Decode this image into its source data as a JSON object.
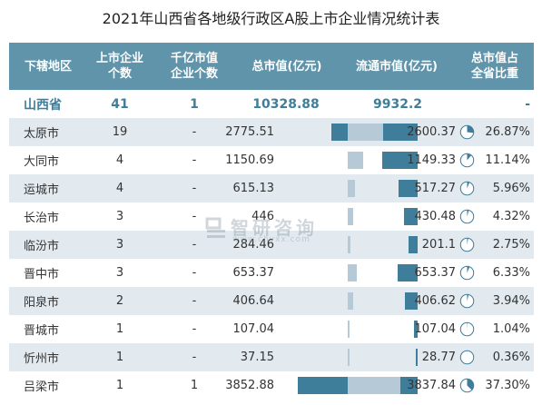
{
  "title": "2021年山西省各地级行政区A股上市企业情况统计表",
  "headers": {
    "region": "下辖地区",
    "count_1": "上市企业",
    "count_2": "个数",
    "hund_1": "千亿市值",
    "hund_2": "企业个数",
    "total": "总市值(亿元)",
    "circ": "流通市值(亿元)",
    "share_1": "总市值占",
    "share_2": "全省比重"
  },
  "province": {
    "name": "山西省",
    "count": "41",
    "hundred_billion": "1",
    "total": "10328.88",
    "circ": "9932.2",
    "share": "-"
  },
  "chart_data": {
    "type": "table",
    "title": "2021年山西省各地级行政区A股上市企业情况统计表",
    "columns": [
      "下辖地区",
      "上市企业个数",
      "千亿市值企业个数",
      "总市值(亿元)",
      "流通市值(亿元)",
      "总市值占全省比重"
    ],
    "rows": [
      {
        "name": "太原市",
        "count": "19",
        "hundred_billion": "-",
        "total": "2775.51",
        "circ": "2600.37",
        "share": "26.87%",
        "share_value": 26.87,
        "total_value": 2775.51,
        "circ_value": 2600.37
      },
      {
        "name": "大同市",
        "count": "4",
        "hundred_billion": "-",
        "total": "1150.69",
        "circ": "1149.33",
        "share": "11.14%",
        "share_value": 11.14,
        "total_value": 1150.69,
        "circ_value": 1149.33
      },
      {
        "name": "运城市",
        "count": "4",
        "hundred_billion": "-",
        "total": "615.13",
        "circ": "517.27",
        "share": "5.96%",
        "share_value": 5.96,
        "total_value": 615.13,
        "circ_value": 517.27
      },
      {
        "name": "长治市",
        "count": "3",
        "hundred_billion": "-",
        "total": "446",
        "circ": "430.48",
        "share": "4.32%",
        "share_value": 4.32,
        "total_value": 446,
        "circ_value": 430.48
      },
      {
        "name": "临汾市",
        "count": "3",
        "hundred_billion": "-",
        "total": "284.46",
        "circ": "201.1",
        "share": "2.75%",
        "share_value": 2.75,
        "total_value": 284.46,
        "circ_value": 201.1
      },
      {
        "name": "晋中市",
        "count": "3",
        "hundred_billion": "-",
        "total": "653.37",
        "circ": "653.37",
        "share": "6.33%",
        "share_value": 6.33,
        "total_value": 653.37,
        "circ_value": 653.37
      },
      {
        "name": "阳泉市",
        "count": "2",
        "hundred_billion": "-",
        "total": "406.64",
        "circ": "406.62",
        "share": "3.94%",
        "share_value": 3.94,
        "total_value": 406.64,
        "circ_value": 406.62
      },
      {
        "name": "晋城市",
        "count": "1",
        "hundred_billion": "-",
        "total": "107.04",
        "circ": "107.04",
        "share": "1.04%",
        "share_value": 1.04,
        "total_value": 107.04,
        "circ_value": 107.04
      },
      {
        "name": "忻州市",
        "count": "1",
        "hundred_billion": "-",
        "total": "37.15",
        "circ": "28.77",
        "share": "0.36%",
        "share_value": 0.36,
        "total_value": 37.15,
        "circ_value": 28.77
      },
      {
        "name": "吕梁市",
        "count": "1",
        "hundred_billion": "1",
        "total": "3852.88",
        "circ": "3837.84",
        "share": "37.30%",
        "share_value": 37.3,
        "total_value": 3852.88,
        "circ_value": 3837.84
      }
    ],
    "bar_max": 3852.88
  },
  "colors": {
    "header_bg": "#5f94aa",
    "total_bar": "#3f7e9b",
    "circ_bar": "#b5cad6",
    "alt_row": "#e2eaf0",
    "pie_fill": "#3f7e9b"
  },
  "watermark": {
    "text": "智研咨询",
    "url": "www.chyxx.com"
  }
}
